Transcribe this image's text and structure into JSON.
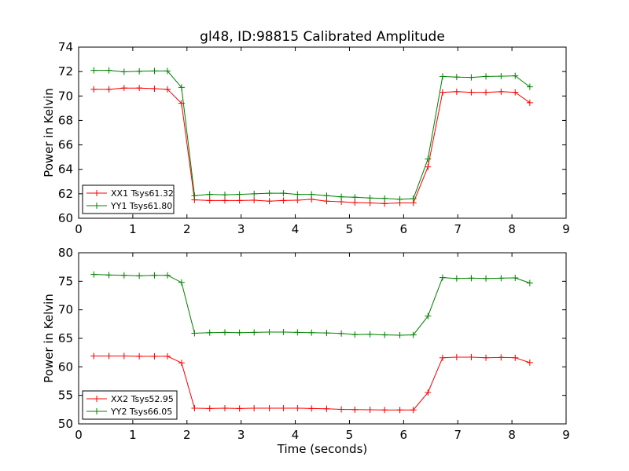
{
  "title": "gl48, ID:98815 Calibrated Amplitude",
  "colors": {
    "red": "#ff0000",
    "green": "#008000"
  },
  "chart_data": [
    {
      "type": "line",
      "title": "gl48, ID:98815 Calibrated Amplitude",
      "xlabel": "",
      "ylabel": "Power in Kelvin",
      "xlim": [
        0,
        9
      ],
      "ylim": [
        60,
        74
      ],
      "xticks": [
        0,
        1,
        2,
        3,
        4,
        5,
        6,
        7,
        8,
        9
      ],
      "yticks": [
        60,
        62,
        64,
        66,
        68,
        70,
        72,
        74
      ],
      "grid": false,
      "legend_position": "lower-left",
      "x": [
        0.28,
        0.56,
        0.84,
        1.12,
        1.4,
        1.64,
        1.9,
        2.14,
        2.42,
        2.7,
        2.97,
        3.24,
        3.52,
        3.78,
        4.04,
        4.3,
        4.58,
        4.85,
        5.1,
        5.38,
        5.65,
        5.93,
        6.18,
        6.45,
        6.72,
        6.98,
        7.25,
        7.52,
        7.8,
        8.06,
        8.33
      ],
      "series": [
        {
          "name": "XX1 Tsys61.32",
          "color": "#ff0000",
          "values": [
            70.55,
            70.55,
            70.65,
            70.65,
            70.6,
            70.55,
            69.4,
            61.5,
            61.45,
            61.45,
            61.45,
            61.48,
            61.4,
            61.45,
            61.48,
            61.55,
            61.4,
            61.35,
            61.28,
            61.25,
            61.2,
            61.25,
            61.25,
            64.2,
            70.3,
            70.35,
            70.3,
            70.3,
            70.35,
            70.3,
            69.45
          ]
        },
        {
          "name": "YY1 Tsys61.80",
          "color": "#008000",
          "values": [
            72.1,
            72.1,
            71.98,
            72.02,
            72.05,
            72.05,
            70.7,
            61.85,
            61.95,
            61.92,
            61.95,
            62.0,
            62.05,
            62.05,
            61.95,
            61.95,
            61.85,
            61.75,
            61.72,
            61.65,
            61.62,
            61.55,
            61.6,
            64.85,
            71.6,
            71.55,
            71.52,
            71.6,
            71.62,
            71.65,
            70.75
          ]
        }
      ]
    },
    {
      "type": "line",
      "title": "",
      "xlabel": "Time (seconds)",
      "ylabel": "Power in Kelvin",
      "xlim": [
        0,
        9
      ],
      "ylim": [
        50,
        80
      ],
      "xticks": [
        0,
        1,
        2,
        3,
        4,
        5,
        6,
        7,
        8,
        9
      ],
      "yticks": [
        50,
        55,
        60,
        65,
        70,
        75,
        80
      ],
      "grid": false,
      "legend_position": "lower-left",
      "x": [
        0.28,
        0.56,
        0.84,
        1.12,
        1.4,
        1.64,
        1.9,
        2.14,
        2.42,
        2.7,
        2.97,
        3.24,
        3.52,
        3.78,
        4.04,
        4.3,
        4.58,
        4.85,
        5.1,
        5.38,
        5.65,
        5.93,
        6.18,
        6.45,
        6.72,
        6.98,
        7.25,
        7.52,
        7.8,
        8.06,
        8.33
      ],
      "series": [
        {
          "name": "XX2 Tsys52.95",
          "color": "#ff0000",
          "values": [
            61.9,
            61.9,
            61.9,
            61.85,
            61.85,
            61.85,
            60.7,
            52.75,
            52.7,
            52.75,
            52.7,
            52.75,
            52.75,
            52.75,
            52.75,
            52.7,
            52.65,
            52.55,
            52.5,
            52.48,
            52.45,
            52.45,
            52.45,
            55.5,
            61.6,
            61.7,
            61.7,
            61.6,
            61.65,
            61.6,
            60.75
          ]
        },
        {
          "name": "YY2 Tsys66.05",
          "color": "#008000",
          "values": [
            76.2,
            76.1,
            76.05,
            75.95,
            76.05,
            76.05,
            74.8,
            65.9,
            66.0,
            66.05,
            66.0,
            66.05,
            66.1,
            66.1,
            66.05,
            66.0,
            65.95,
            65.85,
            65.65,
            65.7,
            65.6,
            65.55,
            65.6,
            68.9,
            75.65,
            75.5,
            75.55,
            75.5,
            75.55,
            75.6,
            74.7
          ]
        }
      ]
    }
  ]
}
